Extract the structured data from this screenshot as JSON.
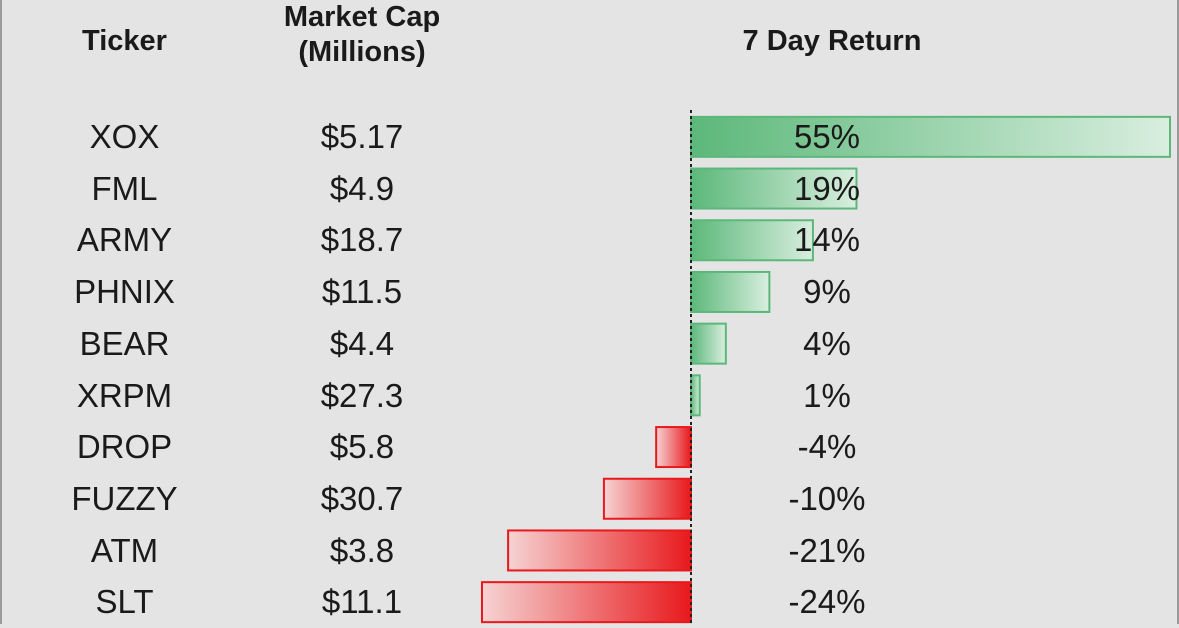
{
  "headers": {
    "ticker": "Ticker",
    "market_cap_line1": "Market Cap",
    "market_cap_line2": "(Millions)",
    "return": "7 Day Return"
  },
  "colors": {
    "positive": "#5cb87a",
    "negative": "#e8191c",
    "background": "#e4e4e4"
  },
  "chart_data": {
    "type": "bar",
    "orientation": "horizontal",
    "categories": [
      "XOX",
      "FML",
      "ARMY",
      "PHNIX",
      "BEAR",
      "XRPM",
      "DROP",
      "FUZZY",
      "ATM",
      "SLT"
    ],
    "series": [
      {
        "values": [
          55,
          19,
          14,
          9,
          4,
          1,
          -4,
          -10,
          -21,
          -24
        ]
      }
    ],
    "title": "7 Day Return",
    "xlabel": "",
    "ylabel": "",
    "grid": false
  },
  "rows": [
    {
      "ticker": "XOX",
      "cap": "$5.17",
      "ret": "55%",
      "value": 55
    },
    {
      "ticker": "FML",
      "cap": "$4.9",
      "ret": "19%",
      "value": 19
    },
    {
      "ticker": "ARMY",
      "cap": "$18.7",
      "ret": "14%",
      "value": 14
    },
    {
      "ticker": "PHNIX",
      "cap": "$11.5",
      "ret": "9%",
      "value": 9
    },
    {
      "ticker": "BEAR",
      "cap": "$4.4",
      "ret": "4%",
      "value": 4
    },
    {
      "ticker": "XRPM",
      "cap": "$27.3",
      "ret": "1%",
      "value": 1
    },
    {
      "ticker": "DROP",
      "cap": "$5.8",
      "ret": "-4%",
      "value": -4
    },
    {
      "ticker": "FUZZY",
      "cap": "$30.7",
      "ret": "-10%",
      "value": -10
    },
    {
      "ticker": "ATM",
      "cap": "$3.8",
      "ret": "-21%",
      "value": -21
    },
    {
      "ticker": "SLT",
      "cap": "$11.1",
      "ret": "-24%",
      "value": -24
    }
  ]
}
